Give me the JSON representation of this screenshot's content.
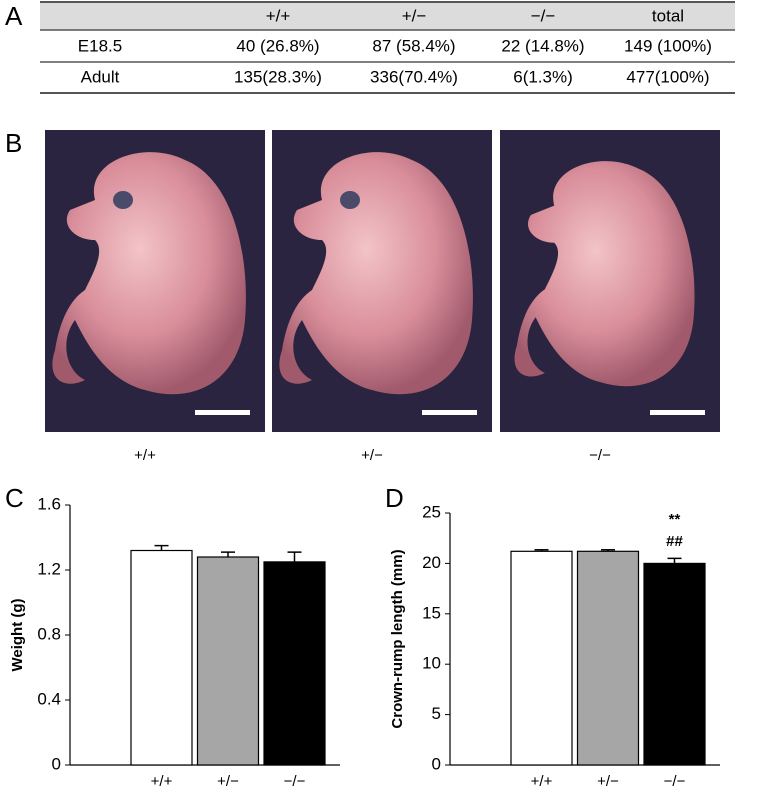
{
  "panels": {
    "a": "A",
    "b": "B"
  },
  "table": {
    "columns": [
      "+/+",
      "+/−",
      "−/−",
      "total"
    ],
    "rows": [
      [
        "E18.5",
        "40 (26.8%)",
        "87 (58.4%)",
        "22 (14.8%)",
        "149 (100%)"
      ],
      [
        "Adult",
        "135(28.3%)",
        "336(70.4%)",
        "6(1.3%)",
        "477(100%)"
      ]
    ]
  },
  "photos": [
    "+/+",
    "+/−",
    "−/−"
  ],
  "chart_data": [
    {
      "type": "bar",
      "panel": "C",
      "y_label": "Weight (g)",
      "categories": [
        "+/+",
        "+/−",
        "−/−"
      ],
      "values": [
        1.32,
        1.28,
        1.25
      ],
      "errors": [
        0.03,
        0.03,
        0.06
      ],
      "colors": [
        "#ffffff",
        "#a6a6a6",
        "#000000"
      ],
      "ylim": [
        0,
        1.6
      ],
      "yticks": [
        0,
        0.4,
        0.8,
        1.2,
        1.6
      ]
    },
    {
      "type": "bar",
      "panel": "D",
      "y_label": "Crown-rump length (mm)",
      "categories": [
        "+/+",
        "+/−",
        "−/−"
      ],
      "values": [
        21.2,
        21.2,
        20.0
      ],
      "errors": [
        0.15,
        0.15,
        0.5
      ],
      "colors": [
        "#ffffff",
        "#a6a6a6",
        "#000000"
      ],
      "ylim": [
        0,
        25
      ],
      "yticks": [
        0,
        5,
        10,
        15,
        20,
        25
      ],
      "annotations": [
        "**",
        "##"
      ]
    }
  ]
}
